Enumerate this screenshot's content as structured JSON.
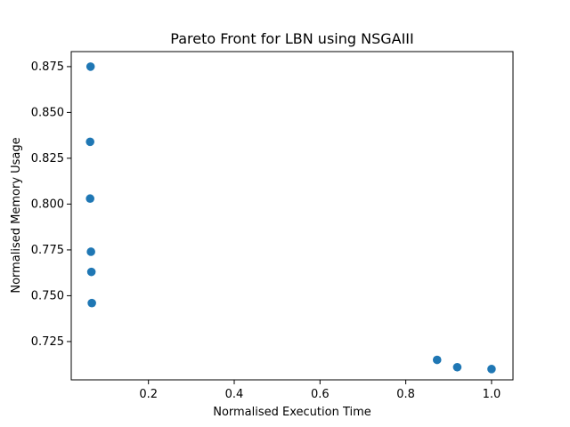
{
  "chart_data": {
    "type": "scatter",
    "title": "Pareto Front for LBN using NSGAIII",
    "xlabel": "Normalised Execution Time",
    "ylabel": "Normalised Memory Usage",
    "xlim": [
      0.02,
      1.05
    ],
    "ylim": [
      0.7041,
      0.8832
    ],
    "xticks": [
      0.2,
      0.4,
      0.6,
      0.8,
      1.0
    ],
    "xtick_labels": [
      "0.2",
      "0.4",
      "0.6",
      "0.8",
      "1.0"
    ],
    "yticks": [
      0.725,
      0.75,
      0.775,
      0.8,
      0.825,
      0.85,
      0.875
    ],
    "ytick_labels": [
      "0.725",
      "0.750",
      "0.775",
      "0.800",
      "0.825",
      "0.850",
      "0.875"
    ],
    "marker_color": "#1f77b4",
    "grid": false,
    "x": [
      0.065,
      0.064,
      0.064,
      0.066,
      0.067,
      0.068,
      0.873,
      0.92,
      1.0
    ],
    "y": [
      0.875,
      0.834,
      0.803,
      0.774,
      0.763,
      0.746,
      0.715,
      0.711,
      0.71
    ]
  }
}
